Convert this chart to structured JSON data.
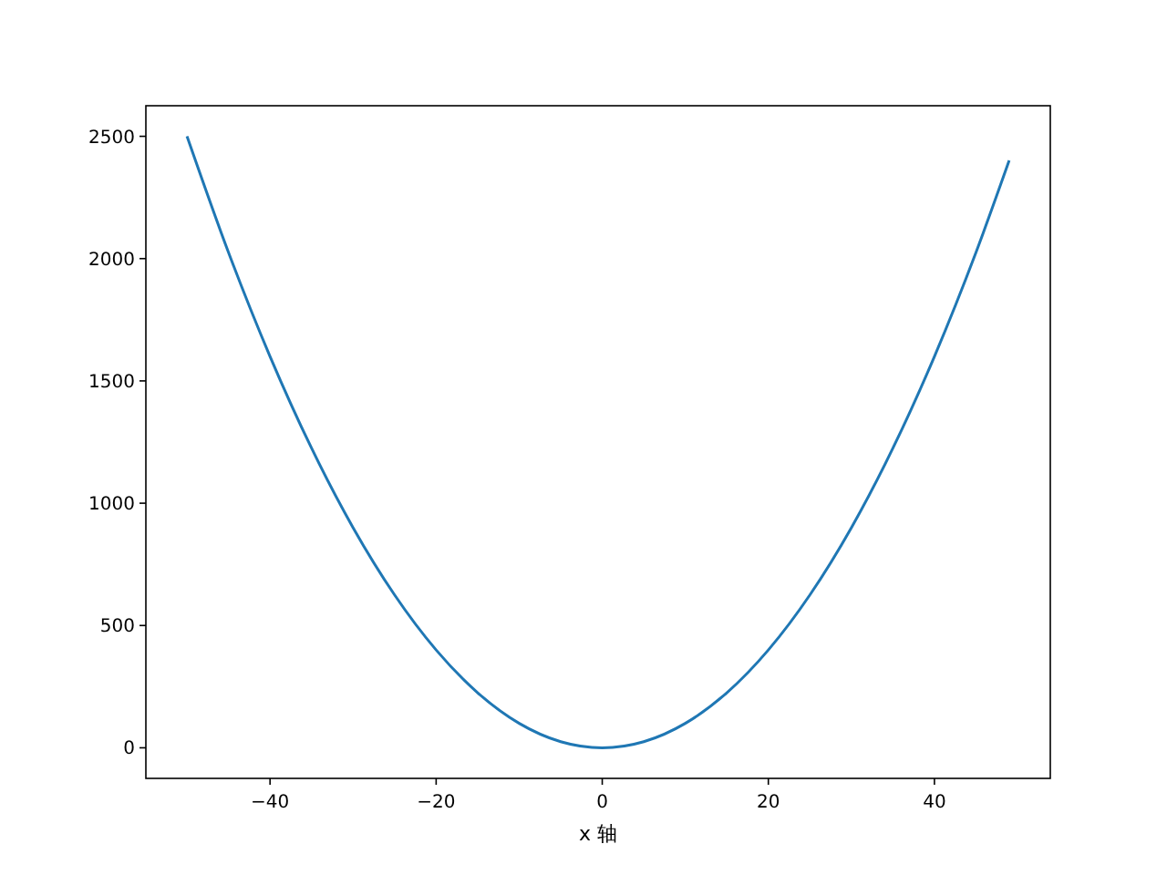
{
  "chart_data": {
    "type": "line",
    "xlabel": "x 轴",
    "x": [
      -50,
      -45,
      -40,
      -35,
      -30,
      -25,
      -20,
      -15,
      -10,
      -5,
      0,
      5,
      10,
      15,
      20,
      25,
      30,
      35,
      40,
      45,
      49
    ],
    "series": [
      {
        "color": "#1f77b4",
        "values": [
          2500,
          2025,
          1600,
          1225,
          900,
          625,
          400,
          225,
          100,
          25,
          0,
          25,
          100,
          225,
          400,
          625,
          900,
          1225,
          1600,
          2025,
          2401
        ]
      }
    ],
    "xlim": [
      -54.95,
      53.95
    ],
    "xticks": [
      -40,
      -20,
      0,
      20,
      40
    ],
    "ylim": [
      -125,
      2625
    ],
    "yticks": [
      0,
      500,
      1000,
      1500,
      2000,
      2500
    ],
    "grid": false
  }
}
